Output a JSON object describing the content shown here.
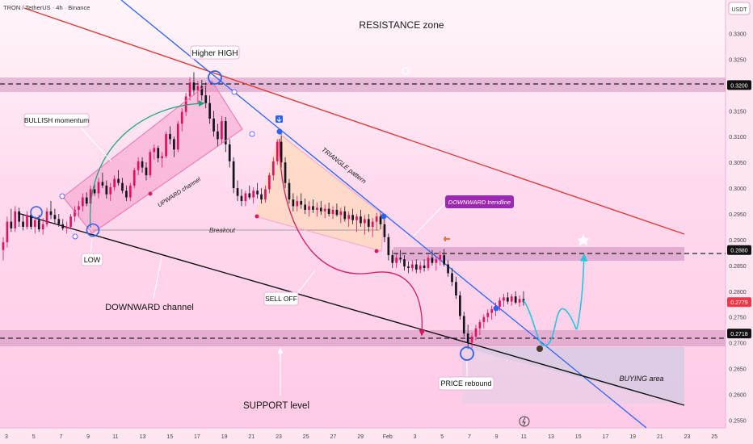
{
  "header": {
    "symbol_title": "TRON / TetherUS · 4h · Binance",
    "currency": "USDT"
  },
  "chart_data": {
    "type": "candlestick",
    "title": "TRON / TetherUS · 4h · Binance",
    "ylabel": "USDT",
    "ylim": [
      0.2535,
      0.3365
    ],
    "y_ticks": [
      "0.2550",
      "0.2600",
      "0.2650",
      "0.2700",
      "0.2750",
      "0.2800",
      "0.2850",
      "0.2900",
      "0.2950",
      "0.3000",
      "0.3050",
      "0.3100",
      "0.3150",
      "0.3200",
      "0.3250",
      "0.3300"
    ],
    "x_ticks": [
      "3",
      "5",
      "7",
      "9",
      "11",
      "13",
      "15",
      "17",
      "19",
      "21",
      "23",
      "25",
      "27",
      "29",
      "Feb",
      "3",
      "5",
      "7",
      "9",
      "11",
      "13",
      "15",
      "17",
      "19",
      "21",
      "23",
      "25"
    ],
    "price_labels": [
      {
        "value": "0.3200",
        "color": "#111111",
        "text_color": "#ffffff"
      },
      {
        "value": "0.2880",
        "color": "#111111",
        "text_color": "#ffffff"
      },
      {
        "value": "0.2779",
        "color": "#f23645",
        "text_color": "#ffffff"
      },
      {
        "value": "0.2718",
        "color": "#111111",
        "text_color": "#ffffff"
      }
    ],
    "zones": [
      {
        "name": "Resistance band",
        "low": 0.3188,
        "high": 0.3214
      },
      {
        "name": "Mid resistance band",
        "low": 0.2868,
        "high": 0.2892
      },
      {
        "name": "Support band",
        "low": 0.27,
        "high": 0.273
      }
    ],
    "levels": [
      0.32,
      0.288,
      0.2718
    ],
    "candles_ohlc": [
      [
        0.288,
        0.2905,
        0.286,
        0.2895
      ],
      [
        0.2895,
        0.2945,
        0.2885,
        0.2935
      ],
      [
        0.2935,
        0.296,
        0.2915,
        0.2922
      ],
      [
        0.2922,
        0.2965,
        0.2915,
        0.2955
      ],
      [
        0.2955,
        0.2962,
        0.2925,
        0.2935
      ],
      [
        0.2935,
        0.295,
        0.2918,
        0.2925
      ],
      [
        0.2925,
        0.2955,
        0.292,
        0.2948
      ],
      [
        0.2948,
        0.2952,
        0.292,
        0.2925
      ],
      [
        0.2925,
        0.2945,
        0.2912,
        0.2938
      ],
      [
        0.2938,
        0.2948,
        0.2915,
        0.292
      ],
      [
        0.292,
        0.2942,
        0.291,
        0.293
      ],
      [
        0.293,
        0.2962,
        0.2925,
        0.2955
      ],
      [
        0.2955,
        0.2975,
        0.294,
        0.2948
      ],
      [
        0.2948,
        0.296,
        0.2932,
        0.294
      ],
      [
        0.294,
        0.295,
        0.2925,
        0.293
      ],
      [
        0.293,
        0.294,
        0.2918,
        0.2922
      ],
      [
        0.2922,
        0.2935,
        0.2912,
        0.2925
      ],
      [
        0.2925,
        0.295,
        0.292,
        0.2945
      ],
      [
        0.2945,
        0.2965,
        0.2935,
        0.2958
      ],
      [
        0.2958,
        0.2975,
        0.2945,
        0.2965
      ],
      [
        0.2965,
        0.299,
        0.2955,
        0.2982
      ],
      [
        0.2982,
        0.2992,
        0.2965,
        0.297
      ],
      [
        0.297,
        0.3005,
        0.2962,
        0.2998
      ],
      [
        0.2998,
        0.301,
        0.2985,
        0.299
      ],
      [
        0.299,
        0.302,
        0.298,
        0.3012
      ],
      [
        0.3012,
        0.303,
        0.3,
        0.3005
      ],
      [
        0.3005,
        0.3015,
        0.298,
        0.2988
      ],
      [
        0.2988,
        0.301,
        0.2975,
        0.3002
      ],
      [
        0.3002,
        0.3025,
        0.2995,
        0.3018
      ],
      [
        0.3018,
        0.3035,
        0.3005,
        0.301
      ],
      [
        0.301,
        0.302,
        0.299,
        0.2995
      ],
      [
        0.2995,
        0.3005,
        0.2975,
        0.2982
      ],
      [
        0.2982,
        0.301,
        0.2975,
        0.3005
      ],
      [
        0.3005,
        0.304,
        0.3,
        0.3035
      ],
      [
        0.3035,
        0.306,
        0.3025,
        0.3052
      ],
      [
        0.3052,
        0.306,
        0.303,
        0.304
      ],
      [
        0.304,
        0.305,
        0.3015,
        0.3025
      ],
      [
        0.3025,
        0.3075,
        0.302,
        0.307
      ],
      [
        0.307,
        0.3085,
        0.3055,
        0.3078
      ],
      [
        0.3078,
        0.3082,
        0.305,
        0.3058
      ],
      [
        0.3058,
        0.307,
        0.304,
        0.3062
      ],
      [
        0.3062,
        0.311,
        0.3058,
        0.3105
      ],
      [
        0.3105,
        0.312,
        0.3085,
        0.3095
      ],
      [
        0.3095,
        0.31,
        0.306,
        0.3075
      ],
      [
        0.3075,
        0.313,
        0.307,
        0.3125
      ],
      [
        0.3125,
        0.3155,
        0.311,
        0.3148
      ],
      [
        0.3148,
        0.3185,
        0.314,
        0.3178
      ],
      [
        0.3178,
        0.3215,
        0.317,
        0.3205
      ],
      [
        0.3205,
        0.3225,
        0.318,
        0.319
      ],
      [
        0.319,
        0.3208,
        0.3165,
        0.3198
      ],
      [
        0.3198,
        0.321,
        0.317,
        0.318
      ],
      [
        0.318,
        0.3205,
        0.3155,
        0.3165
      ],
      [
        0.3165,
        0.318,
        0.3125,
        0.3135
      ],
      [
        0.3135,
        0.315,
        0.31,
        0.311
      ],
      [
        0.311,
        0.3125,
        0.308,
        0.3095
      ],
      [
        0.3095,
        0.314,
        0.3085,
        0.313
      ],
      [
        0.313,
        0.3138,
        0.307,
        0.3085
      ],
      [
        0.3085,
        0.3095,
        0.304,
        0.3052
      ],
      [
        0.3052,
        0.306,
        0.299,
        0.3
      ],
      [
        0.3,
        0.3015,
        0.2975,
        0.2985
      ],
      [
        0.2985,
        0.2998,
        0.2965,
        0.2975
      ],
      [
        0.2975,
        0.2995,
        0.2965,
        0.299
      ],
      [
        0.299,
        0.3005,
        0.2978,
        0.2982
      ],
      [
        0.2982,
        0.3002,
        0.297,
        0.2995
      ],
      [
        0.2995,
        0.301,
        0.298,
        0.2988
      ],
      [
        0.2988,
        0.3,
        0.297,
        0.2978
      ],
      [
        0.2978,
        0.3005,
        0.2972,
        0.2998
      ],
      [
        0.2998,
        0.303,
        0.299,
        0.3025
      ],
      [
        0.3025,
        0.306,
        0.3015,
        0.3052
      ],
      [
        0.3052,
        0.3095,
        0.3045,
        0.309
      ],
      [
        0.309,
        0.3112,
        0.304,
        0.305
      ],
      [
        0.305,
        0.306,
        0.3,
        0.301
      ],
      [
        0.301,
        0.3018,
        0.297,
        0.2978
      ],
      [
        0.2978,
        0.299,
        0.2955,
        0.2965
      ],
      [
        0.2965,
        0.2985,
        0.2955,
        0.2975
      ],
      [
        0.2975,
        0.299,
        0.296,
        0.2968
      ],
      [
        0.2968,
        0.298,
        0.295,
        0.2958
      ],
      [
        0.2958,
        0.2975,
        0.2945,
        0.2965
      ],
      [
        0.2965,
        0.2978,
        0.2952,
        0.2958
      ],
      [
        0.2958,
        0.2972,
        0.2945,
        0.2962
      ],
      [
        0.2962,
        0.2975,
        0.2948,
        0.2955
      ],
      [
        0.2955,
        0.2968,
        0.2942,
        0.296
      ],
      [
        0.296,
        0.2972,
        0.2945,
        0.295
      ],
      [
        0.295,
        0.2965,
        0.294,
        0.2958
      ],
      [
        0.2958,
        0.297,
        0.2945,
        0.2948
      ],
      [
        0.2948,
        0.2962,
        0.2932,
        0.2955
      ],
      [
        0.2955,
        0.2965,
        0.2935,
        0.294
      ],
      [
        0.294,
        0.2955,
        0.2925,
        0.2948
      ],
      [
        0.2948,
        0.296,
        0.293,
        0.2938
      ],
      [
        0.2938,
        0.295,
        0.2915,
        0.2945
      ],
      [
        0.2945,
        0.2958,
        0.2925,
        0.2932
      ],
      [
        0.2932,
        0.2948,
        0.291,
        0.294
      ],
      [
        0.294,
        0.295,
        0.2915,
        0.2925
      ],
      [
        0.2925,
        0.2942,
        0.2905,
        0.2935
      ],
      [
        0.2935,
        0.2952,
        0.2918,
        0.2945
      ],
      [
        0.2945,
        0.2955,
        0.292,
        0.293
      ],
      [
        0.293,
        0.294,
        0.2895,
        0.2905
      ],
      [
        0.2905,
        0.2912,
        0.286,
        0.287
      ],
      [
        0.287,
        0.288,
        0.2845,
        0.2855
      ],
      [
        0.2855,
        0.2872,
        0.2845,
        0.2865
      ],
      [
        0.2865,
        0.288,
        0.2855,
        0.2862
      ],
      [
        0.2862,
        0.287,
        0.284,
        0.2848
      ],
      [
        0.2848,
        0.2858,
        0.2835,
        0.2845
      ],
      [
        0.2845,
        0.286,
        0.2838,
        0.2852
      ],
      [
        0.2852,
        0.2862,
        0.2835,
        0.2842
      ],
      [
        0.2842,
        0.2858,
        0.2835,
        0.285
      ],
      [
        0.285,
        0.2862,
        0.2838,
        0.2845
      ],
      [
        0.2845,
        0.287,
        0.284,
        0.2865
      ],
      [
        0.2865,
        0.288,
        0.285,
        0.2855
      ],
      [
        0.2855,
        0.2868,
        0.284,
        0.2862
      ],
      [
        0.2862,
        0.2878,
        0.285,
        0.287
      ],
      [
        0.287,
        0.2882,
        0.2848,
        0.2852
      ],
      [
        0.2852,
        0.286,
        0.2828,
        0.2835
      ],
      [
        0.2835,
        0.2845,
        0.281,
        0.2818
      ],
      [
        0.2818,
        0.2828,
        0.2785,
        0.2792
      ],
      [
        0.2792,
        0.28,
        0.2745,
        0.2752
      ],
      [
        0.2752,
        0.276,
        0.2712,
        0.2718
      ],
      [
        0.2718,
        0.2735,
        0.2688,
        0.27
      ],
      [
        0.27,
        0.272,
        0.269,
        0.2712
      ],
      [
        0.2712,
        0.2735,
        0.2705,
        0.2728
      ],
      [
        0.2728,
        0.2745,
        0.2715,
        0.274
      ],
      [
        0.274,
        0.2755,
        0.2728,
        0.275
      ],
      [
        0.275,
        0.2765,
        0.274,
        0.2758
      ],
      [
        0.2758,
        0.2772,
        0.2745,
        0.2765
      ],
      [
        0.2765,
        0.2778,
        0.2752,
        0.277
      ],
      [
        0.277,
        0.2788,
        0.2762,
        0.2782
      ],
      [
        0.2782,
        0.2795,
        0.277,
        0.2788
      ],
      [
        0.2788,
        0.2798,
        0.2775,
        0.278
      ],
      [
        0.278,
        0.2795,
        0.2772,
        0.279
      ],
      [
        0.279,
        0.28,
        0.2775,
        0.2778
      ],
      [
        0.2778,
        0.2792,
        0.277,
        0.2785
      ],
      [
        0.2785,
        0.28,
        0.2772,
        0.2779
      ]
    ],
    "annotations": [
      "RESISTANCE zone",
      "Higher HIGH",
      "BULLISH momentum",
      "UPWARD channel",
      "TRIANGLE pattern",
      "DOWNWARD trendline",
      "Breakout",
      "LOW",
      "DOWNWARD channel",
      "SELL OFF",
      "PRICE rebound",
      "SUPPORT level",
      "BUYING area"
    ],
    "colors": {
      "bull": "#e0115f",
      "bear": "#14141e",
      "resistance_line": "#e53935",
      "trendline": "#2962ff",
      "channel_line": "#111111",
      "projection": "#26c6da",
      "band": "#d48fc0",
      "buy_area": "#c9c2dc"
    }
  }
}
